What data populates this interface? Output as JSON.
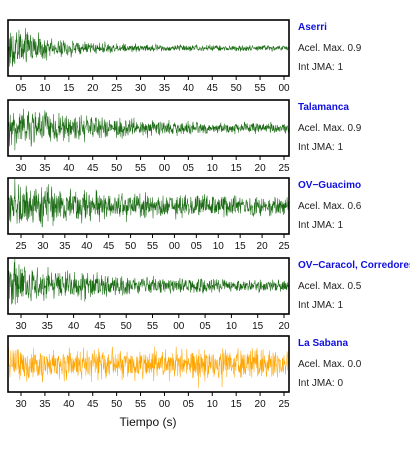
{
  "colors": {
    "trace_default": "#1a6b14",
    "trace_highlight": "#ffa500",
    "station_label": "#1010e0",
    "frame": "#000000"
  },
  "info_labels": {
    "accel": "Acel. Max.",
    "intensity": "Int JMA:"
  },
  "chart_data": {
    "type": "line",
    "xlabel": "Tiempo (s)",
    "ylabel": "",
    "grid": false,
    "panels": [
      {
        "station": "Aserri",
        "accel_max": "0.9",
        "int_jma": "1",
        "color": "#1a6b14",
        "tick_labels": [
          "05",
          "10",
          "15",
          "20",
          "25",
          "30",
          "35",
          "40",
          "45",
          "50",
          "55",
          "00"
        ],
        "envelope": {
          "onset": 0.0,
          "peak": 1.0,
          "decay": 0.18,
          "floor": 0.12
        }
      },
      {
        "station": "Talamanca",
        "accel_max": "0.9",
        "int_jma": "1",
        "color": "#1a6b14",
        "tick_labels": [
          "30",
          "35",
          "40",
          "45",
          "50",
          "55",
          "00",
          "05",
          "10",
          "15",
          "20",
          "25"
        ],
        "envelope": {
          "onset": 0.0,
          "peak": 0.85,
          "decay": 0.45,
          "floor": 0.15
        }
      },
      {
        "station": "OV−Guacimo",
        "accel_max": "0.6",
        "int_jma": "1",
        "color": "#1a6b14",
        "tick_labels": [
          "25",
          "30",
          "35",
          "40",
          "45",
          "50",
          "55",
          "00",
          "05",
          "10",
          "15",
          "20",
          "25"
        ],
        "envelope": {
          "onset": 0.0,
          "peak": 0.95,
          "decay": 0.55,
          "floor": 0.28
        }
      },
      {
        "station": "OV−Caracol, Corredores",
        "accel_max": "0.5",
        "int_jma": "1",
        "color": "#1a6b14",
        "tick_labels": [
          "30",
          "35",
          "40",
          "45",
          "50",
          "55",
          "00",
          "05",
          "10",
          "15",
          "20"
        ],
        "envelope": {
          "onset": 0.0,
          "peak": 1.0,
          "decay": 0.35,
          "floor": 0.2
        }
      },
      {
        "station": "La Sabana",
        "accel_max": "0.0",
        "int_jma": "0",
        "color": "#ffa500",
        "tick_labels": [
          "30",
          "35",
          "40",
          "45",
          "50",
          "55",
          "00",
          "05",
          "10",
          "15",
          "20",
          "25"
        ],
        "envelope": {
          "onset": 0.0,
          "peak": 0.7,
          "decay": 0.0,
          "floor": 0.6
        }
      }
    ]
  }
}
